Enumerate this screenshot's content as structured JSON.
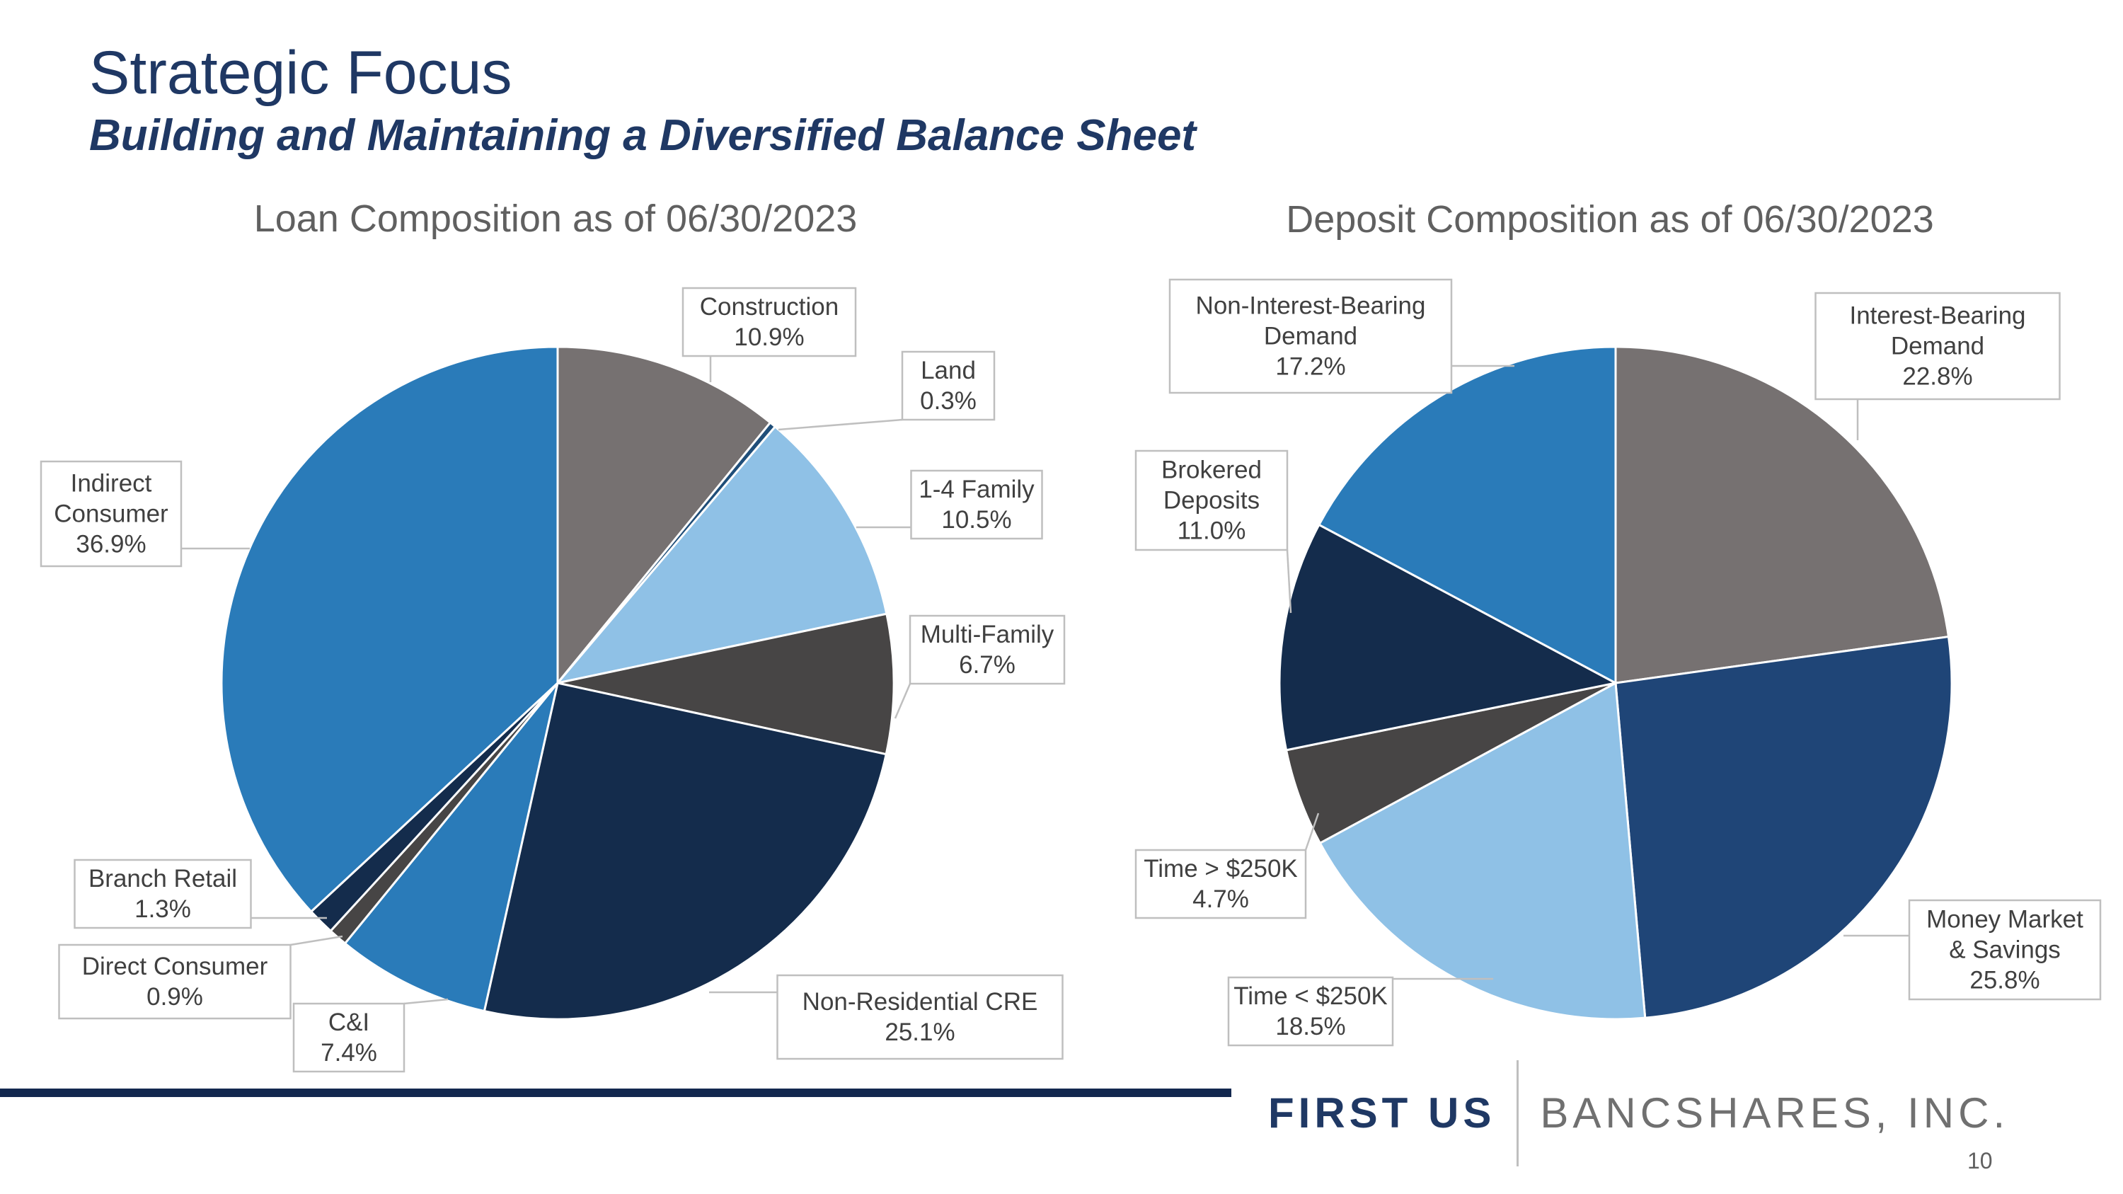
{
  "slide": {
    "title": "Strategic Focus",
    "subtitle": "Building and Maintaining a Diversified Balance Sheet",
    "page_number": "10"
  },
  "footer": {
    "brand_primary": "FIRST US",
    "brand_secondary": "BANCSHARES, INC.",
    "colors": {
      "rule": "#13284f",
      "primary": "#1f3864",
      "secondary": "#707070"
    }
  },
  "chart_data": [
    {
      "id": "loan",
      "type": "pie",
      "title": "Loan Composition as of 06/30/2023",
      "unit": "%",
      "slices": [
        {
          "label_lines": [
            "Construction"
          ],
          "value": 10.9,
          "value_text": "10.9%",
          "color": "#767171"
        },
        {
          "label_lines": [
            "Land"
          ],
          "value": 0.3,
          "value_text": "0.3%",
          "color": "#1f4e79"
        },
        {
          "label_lines": [
            "1-4 Family"
          ],
          "value": 10.5,
          "value_text": "10.5%",
          "color": "#8fc1e6"
        },
        {
          "label_lines": [
            "Multi-Family"
          ],
          "value": 6.7,
          "value_text": "6.7%",
          "color": "#474545"
        },
        {
          "label_lines": [
            "Non-Residential CRE"
          ],
          "value": 25.1,
          "value_text": "25.1%",
          "color": "#142c4c"
        },
        {
          "label_lines": [
            "C&I"
          ],
          "value": 7.4,
          "value_text": "7.4%",
          "color": "#2a7bb9"
        },
        {
          "label_lines": [
            "Direct Consumer"
          ],
          "value": 0.9,
          "value_text": "0.9%",
          "color": "#474545"
        },
        {
          "label_lines": [
            "Branch Retail"
          ],
          "value": 1.3,
          "value_text": "1.3%",
          "color": "#142c4c"
        },
        {
          "label_lines": [
            "Indirect",
            "Consumer"
          ],
          "value": 36.9,
          "value_text": "36.9%",
          "color": "#2a7bb9"
        }
      ]
    },
    {
      "id": "deposit",
      "type": "pie",
      "title": "Deposit Composition as of 06/30/2023",
      "unit": "%",
      "slices": [
        {
          "label_lines": [
            "Interest-Bearing",
            "Demand"
          ],
          "value": 22.8,
          "value_text": "22.8%",
          "color": "#767171"
        },
        {
          "label_lines": [
            "Money Market",
            "& Savings"
          ],
          "value": 25.8,
          "value_text": "25.8%",
          "color": "#1f4577"
        },
        {
          "label_lines": [
            "Time < $250K"
          ],
          "value": 18.5,
          "value_text": "18.5%",
          "color": "#8fc1e6"
        },
        {
          "label_lines": [
            "Time > $250K"
          ],
          "value": 4.7,
          "value_text": "4.7%",
          "color": "#474545"
        },
        {
          "label_lines": [
            "Brokered",
            "Deposits"
          ],
          "value": 11.0,
          "value_text": "11.0%",
          "color": "#142c4c"
        },
        {
          "label_lines": [
            "Non-Interest-Bearing",
            "Demand"
          ],
          "value": 17.2,
          "value_text": "17.2%",
          "color": "#2a7bb9"
        }
      ]
    }
  ]
}
